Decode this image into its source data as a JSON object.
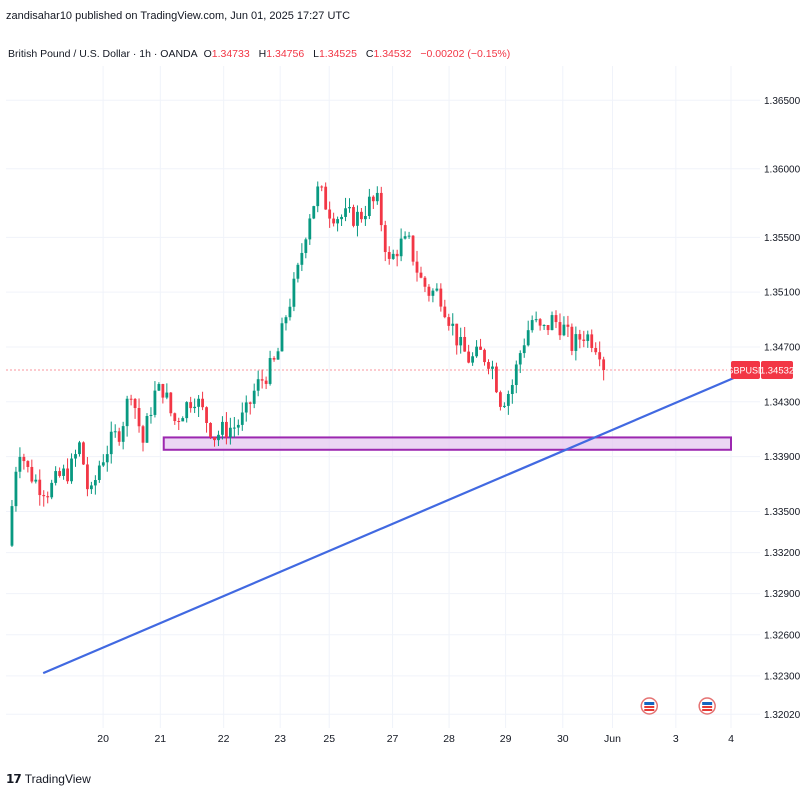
{
  "header": {
    "published": "zandisahar10 published on TradingView.com, Jun 01, 2025 17:27 UTC"
  },
  "legend": {
    "symbol": "British Pound / U.S. Dollar · 1h · OANDA",
    "o_label": "O",
    "o_value": "1.34733",
    "h_label": "H",
    "h_value": "1.34756",
    "l_label": "L",
    "l_value": "1.34525",
    "c_label": "C",
    "c_value": "1.34532",
    "change": "−0.00202 (−0.15%)"
  },
  "footer": {
    "brand": "TradingView"
  },
  "colors": {
    "up": "#089981",
    "down": "#f23645",
    "trendline": "#4169e1",
    "zone_fill": "#e4c8f0",
    "zone_border": "#9c27b0",
    "price_label": "#f23645"
  },
  "chart_data": {
    "type": "candlestick",
    "symbol_tag": "GBPUSD",
    "last_price": 1.34532,
    "last_price_label": "1.34532",
    "y_ticks": [
      {
        "value": 1.365,
        "label": "1.36500"
      },
      {
        "value": 1.36,
        "label": "1.36000"
      },
      {
        "value": 1.355,
        "label": "1.35500"
      },
      {
        "value": 1.351,
        "label": "1.35100"
      },
      {
        "value": 1.347,
        "label": "1.34700"
      },
      {
        "value": 1.343,
        "label": "1.34300"
      },
      {
        "value": 1.339,
        "label": "1.33900"
      },
      {
        "value": 1.335,
        "label": "1.33500"
      },
      {
        "value": 1.332,
        "label": "1.33200"
      },
      {
        "value": 1.329,
        "label": "1.32900"
      },
      {
        "value": 1.326,
        "label": "1.32600"
      },
      {
        "value": 1.323,
        "label": "1.32300"
      },
      {
        "value": 1.3202,
        "label": "1.32020"
      }
    ],
    "x_ticks": [
      {
        "t": 0.078,
        "label": "20"
      },
      {
        "t": 0.162,
        "label": "21"
      },
      {
        "t": 0.255,
        "label": "22"
      },
      {
        "t": 0.338,
        "label": "23"
      },
      {
        "t": 0.41,
        "label": "25"
      },
      {
        "t": 0.503,
        "label": "27"
      },
      {
        "t": 0.586,
        "label": "28"
      },
      {
        "t": 0.669,
        "label": "29"
      },
      {
        "t": 0.753,
        "label": "30"
      },
      {
        "t": 0.826,
        "label": "Jun"
      },
      {
        "t": 0.919,
        "label": "3"
      },
      {
        "t": 1.0,
        "label": "4"
      }
    ],
    "anchors": [
      [
        0.0,
        1.3325
      ],
      [
        0.014,
        1.34
      ],
      [
        0.027,
        1.338
      ],
      [
        0.041,
        1.337
      ],
      [
        0.055,
        1.3365
      ],
      [
        0.07,
        1.3375
      ],
      [
        0.085,
        1.338
      ],
      [
        0.099,
        1.34
      ],
      [
        0.107,
        1.337
      ],
      [
        0.113,
        1.336
      ],
      [
        0.125,
        1.3385
      ],
      [
        0.14,
        1.34
      ],
      [
        0.154,
        1.341
      ],
      [
        0.168,
        1.344
      ],
      [
        0.176,
        1.342
      ],
      [
        0.184,
        1.34
      ],
      [
        0.199,
        1.3435
      ],
      [
        0.212,
        1.344
      ],
      [
        0.226,
        1.3415
      ],
      [
        0.24,
        1.3425
      ],
      [
        0.254,
        1.3435
      ],
      [
        0.268,
        1.342
      ],
      [
        0.282,
        1.3405
      ],
      [
        0.296,
        1.341
      ],
      [
        0.31,
        1.3412
      ],
      [
        0.324,
        1.342
      ],
      [
        0.338,
        1.344
      ],
      [
        0.352,
        1.345
      ],
      [
        0.366,
        1.346
      ],
      [
        0.38,
        1.3495
      ],
      [
        0.394,
        1.352
      ],
      [
        0.41,
        1.3565
      ],
      [
        0.424,
        1.3585
      ],
      [
        0.438,
        1.357
      ],
      [
        0.452,
        1.3565
      ],
      [
        0.466,
        1.3565
      ],
      [
        0.48,
        1.3565
      ],
      [
        0.493,
        1.3575
      ],
      [
        0.505,
        1.3575
      ],
      [
        0.52,
        1.353
      ],
      [
        0.534,
        1.3545
      ],
      [
        0.548,
        1.3545
      ],
      [
        0.562,
        1.352
      ],
      [
        0.575,
        1.351
      ],
      [
        0.589,
        1.351
      ],
      [
        0.603,
        1.349
      ],
      [
        0.617,
        1.347
      ],
      [
        0.631,
        1.346
      ],
      [
        0.645,
        1.3465
      ],
      [
        0.659,
        1.346
      ],
      [
        0.673,
        1.343
      ],
      [
        0.687,
        1.344
      ],
      [
        0.701,
        1.347
      ],
      [
        0.715,
        1.349
      ],
      [
        0.729,
        1.348
      ],
      [
        0.743,
        1.349
      ],
      [
        0.757,
        1.3485
      ],
      [
        0.771,
        1.347
      ],
      [
        0.785,
        1.348
      ],
      [
        0.799,
        1.3475
      ],
      [
        0.813,
        1.3465
      ]
    ],
    "y_range": [
      1.3192,
      1.3675
    ],
    "zone": {
      "t_start": 0.167,
      "t_end": 1.0,
      "top": 1.3404,
      "bottom": 1.3395
    },
    "trendline": {
      "start": [
        -0.01,
        1.3232
      ],
      "end": [
        1.04,
        1.3455
      ]
    },
    "event_markers": [
      {
        "t": 0.88
      },
      {
        "t": 0.965
      }
    ]
  }
}
